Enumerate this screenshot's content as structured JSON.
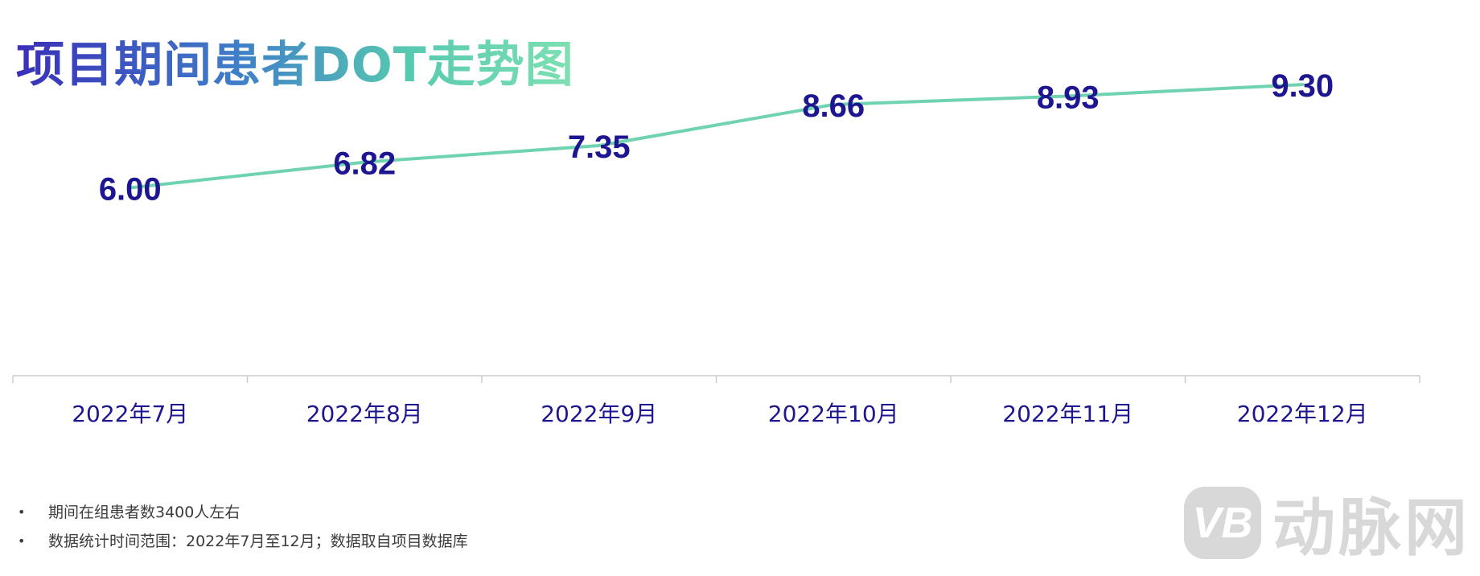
{
  "title": "项目期间患者DOT走势图",
  "chart_data": {
    "type": "line",
    "title": "项目期间患者DOT走势图",
    "categories": [
      "2022年7月",
      "2022年8月",
      "2022年9月",
      "2022年10月",
      "2022年11月",
      "2022年12月"
    ],
    "series": [
      {
        "values": [
          6.0,
          6.82,
          7.35,
          8.66,
          8.93,
          9.3
        ]
      }
    ],
    "value_labels": [
      "6.00",
      "6.82",
      "7.35",
      "8.66",
      "8.93",
      "9.30"
    ],
    "ylim": [
      0,
      12
    ],
    "grid": false,
    "line_color": "#6fd3b0",
    "label_color": "#1e1590",
    "axis_color": "#cccccc"
  },
  "notes": [
    "期间在组患者数3400人左右",
    "数据统计时间范围：2022年7月至12月；数据取自项目数据库"
  ],
  "bullet": "•",
  "watermark": {
    "logo_text": "VB",
    "text": "动脉网"
  }
}
